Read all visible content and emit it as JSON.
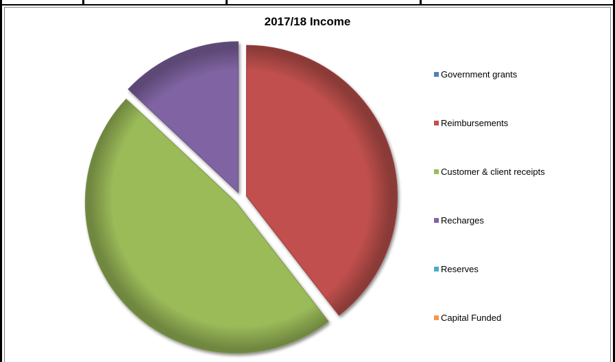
{
  "chart_data": {
    "type": "pie",
    "title": "2017/18 Income",
    "categories": [
      "Government grants",
      "Reimbursements",
      "Customer & client receipts",
      "Recharges",
      "Reserves",
      "Capital Funded"
    ],
    "values": [
      0,
      39.5,
      47.5,
      13,
      0,
      0
    ],
    "colors": [
      "#4f81bd",
      "#c0504d",
      "#9bbb59",
      "#8064a2",
      "#4bacc6",
      "#f79646"
    ],
    "legend_position": "right",
    "exploded": true
  }
}
